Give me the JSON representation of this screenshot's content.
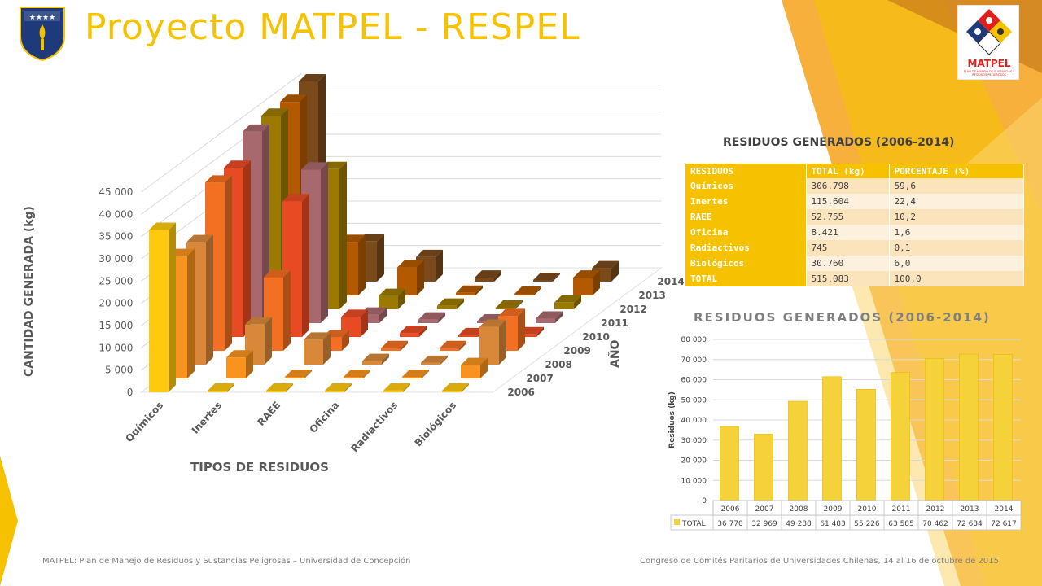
{
  "header": {
    "title": "Proyecto MATPEL - RESPEL",
    "logo_text": "MATPEL",
    "logo_subtext": "PLAN DE MANEJO DE SUSTANCIAS Y RESIDUOS PELIGROSOS"
  },
  "colors": {
    "accent": "#f6c200",
    "orange": "#f39a1a",
    "brown": "#7b4a1e"
  },
  "chart_data": [
    {
      "type": "bar",
      "subtype": "3d-column",
      "title": "",
      "xlabel": "TIPOS DE RESIDUOS",
      "ylabel": "CANTIDAD GENERADA (kg)",
      "zlabel": "AÑO",
      "categories": [
        "Químicos",
        "Inertes",
        "RAEE",
        "Oficina",
        "Radiactivos",
        "Biológicos"
      ],
      "yticks": [
        "0",
        "5 000",
        "10 000",
        "15 000",
        "20 000",
        "25 000",
        "30 000",
        "35 000",
        "40 000",
        "45 000"
      ],
      "ylim": [
        0,
        45000
      ],
      "series": [
        {
          "name": "2006",
          "values": [
            36500,
            300,
            300,
            300,
            400,
            300
          ]
        },
        {
          "name": "2007",
          "values": [
            27500,
            4700,
            300,
            300,
            300,
            3000
          ]
        },
        {
          "name": "2008",
          "values": [
            27500,
            9000,
            5600,
            800,
            400,
            8500
          ]
        },
        {
          "name": "2009",
          "values": [
            37800,
            16500,
            3000,
            600,
            600,
            7800
          ]
        },
        {
          "name": "2010",
          "values": [
            38000,
            30500,
            4500,
            900,
            400,
            600
          ]
        },
        {
          "name": "2011",
          "values": [
            43000,
            34500,
            1900,
            800,
            300,
            1000
          ]
        },
        {
          "name": "2012",
          "values": [
            43500,
            31500,
            3000,
            800,
            200,
            1500
          ]
        },
        {
          "name": "2013",
          "values": [
            43500,
            12000,
            6300,
            600,
            200,
            4000
          ]
        },
        {
          "name": "2014",
          "values": [
            45000,
            9000,
            5500,
            900,
            300,
            3000
          ]
        }
      ]
    },
    {
      "type": "bar",
      "title": "RESIDUOS GENERADOS (2006-2014)",
      "xlabel": "",
      "ylabel": "Residuos (kg)",
      "categories": [
        "2006",
        "2007",
        "2008",
        "2009",
        "2010",
        "2011",
        "2012",
        "2013",
        "2014"
      ],
      "series": [
        {
          "name": "TOTAL",
          "values": [
            36770,
            32969,
            49288,
            61483,
            55226,
            63585,
            70462,
            72684,
            72617
          ]
        }
      ],
      "value_labels": [
        "36 770",
        "32 969",
        "49 288",
        "61 483",
        "55 226",
        "63 585",
        "70 462",
        "72 684",
        "72 617"
      ],
      "yticks": [
        "0",
        "10 000",
        "20 000",
        "30 000",
        "40 000",
        "50 000",
        "60 000",
        "70 000",
        "80 000"
      ],
      "ylim": [
        0,
        80000
      ],
      "grid": true
    }
  ],
  "table": {
    "title": "RESIDUOS GENERADOS (2006-2014)",
    "headers": [
      "RESIDUOS",
      "TOTAL (kg)",
      "PORCENTAJE (%)"
    ],
    "rows": [
      [
        "Químicos",
        "306.798",
        "59,6"
      ],
      [
        "Inertes",
        "115.604",
        "22,4"
      ],
      [
        "RAEE",
        "52.755",
        "10,2"
      ],
      [
        "Oficina",
        "8.421",
        "1,6"
      ],
      [
        "Radiactivos",
        "745",
        "0,1"
      ],
      [
        "Biológicos",
        "30.760",
        "6,0"
      ],
      [
        "TOTAL",
        "515.083",
        "100,0"
      ]
    ]
  },
  "footer": {
    "left": "MATPEL: Plan de Manejo de Residuos y Sustancias Peligrosas – Universidad de Concepción",
    "right": "Congreso de Comités Paritarios de Universidades Chilenas, 14 al 16 de octubre de 2015"
  }
}
